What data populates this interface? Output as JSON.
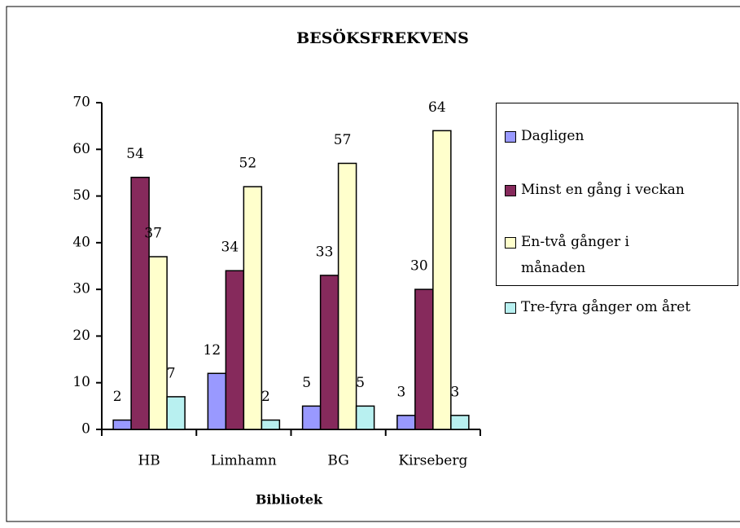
{
  "chart_data": {
    "type": "bar",
    "title": "BESÖKSFREKVENS",
    "x_label": "Bibliotek",
    "categories": [
      "HB",
      "Limhamn",
      "BG",
      "Kirseberg"
    ],
    "series": [
      {
        "name": "Dagligen",
        "color": "#9999ff",
        "values": [
          2,
          12,
          5,
          3
        ]
      },
      {
        "name": "Minst en gång i veckan",
        "color": "#862a5c",
        "values": [
          54,
          34,
          33,
          30
        ]
      },
      {
        "name": "En-två gånger i månaden",
        "color": "#ffffcc",
        "values": [
          37,
          52,
          57,
          64
        ]
      },
      {
        "name": "Tre-fyra gånger om året",
        "color": "#b8f0f0",
        "values": [
          7,
          2,
          5,
          3
        ]
      }
    ],
    "ylim": [
      0,
      70
    ],
    "yticks": [
      0,
      10,
      20,
      30,
      40,
      50,
      60,
      70
    ],
    "grid": false,
    "legend": "right"
  }
}
